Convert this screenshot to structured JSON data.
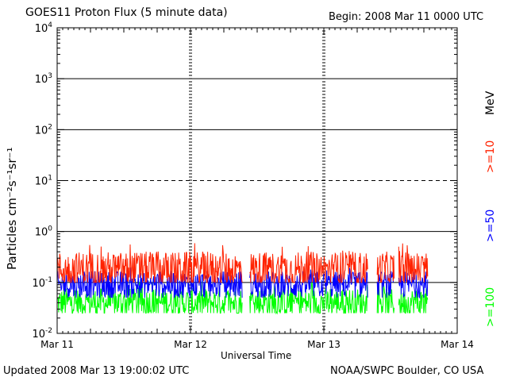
{
  "header": {
    "title": "GOES11 Proton Flux (5 minute data)",
    "begin": "Begin: 2008 Mar 11 0000 UTC"
  },
  "footer": {
    "updated": "Updated 2008 Mar 13 19:00:02 UTC",
    "credit": "NOAA/SWPC Boulder, CO USA"
  },
  "chart_data": {
    "type": "line",
    "title": "GOES11 Proton Flux (5 minute data)",
    "xlabel": "Universal Time",
    "ylabel": "Particles cm⁻²s⁻¹sr⁻¹",
    "yscale": "log",
    "ylim": [
      0.01,
      10000
    ],
    "xlim": [
      0,
      3
    ],
    "x_tick_labels": [
      "Mar 11",
      "Mar 12",
      "Mar 13",
      "Mar 14"
    ],
    "y_tick_labels": [
      {
        "base": "10",
        "exp": "4"
      },
      {
        "base": "10",
        "exp": "3"
      },
      {
        "base": "10",
        "exp": "2"
      },
      {
        "base": "10",
        "exp": "1"
      },
      {
        "base": "10",
        "exp": "0"
      },
      {
        "base": "10",
        "exp": "-1"
      },
      {
        "base": "10",
        "exp": "-2"
      }
    ],
    "reference_lines": [
      {
        "value": 1000,
        "style": "solid"
      },
      {
        "value": 100,
        "style": "solid"
      },
      {
        "value": 10,
        "style": "dashed"
      },
      {
        "value": 1,
        "style": "solid"
      },
      {
        "value": 0.1,
        "style": "solid"
      }
    ],
    "legend_unit": "MeV",
    "series": [
      {
        "name": ">=10",
        "color": "#ff2200",
        "typical": 0.18,
        "min": 0.1,
        "max": 0.6
      },
      {
        "name": ">=50",
        "color": "#0000ff",
        "typical": 0.09,
        "min": 0.05,
        "max": 0.2
      },
      {
        "name": ">=100",
        "color": "#00ff00",
        "typical": 0.04,
        "min": 0.025,
        "max": 0.11
      }
    ],
    "data_gaps": [
      [
        1.39,
        1.44
      ],
      [
        2.33,
        2.4
      ],
      [
        2.53,
        2.56
      ],
      [
        2.78,
        3.0
      ]
    ]
  }
}
